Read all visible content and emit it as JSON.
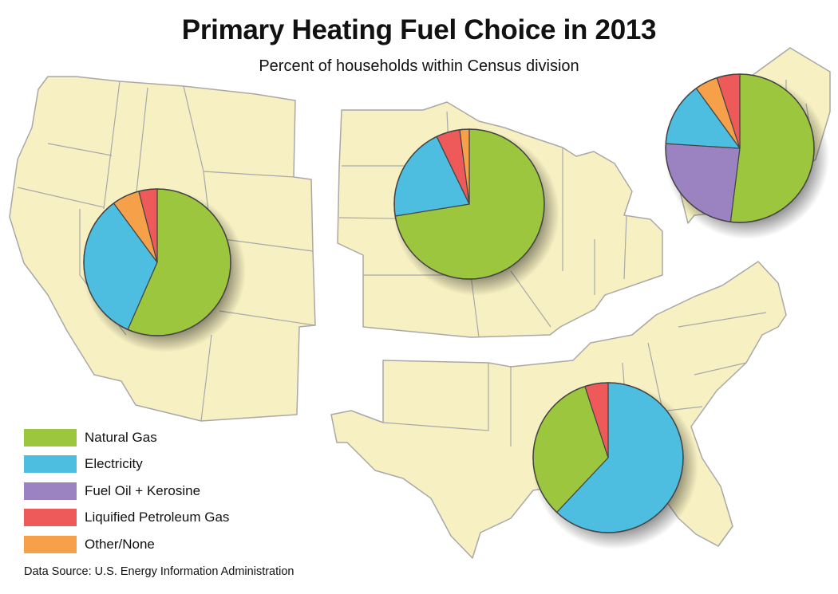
{
  "title": "Primary Heating Fuel Choice in 2013",
  "subtitle": "Percent of households within Census division",
  "colors": {
    "Natural Gas": "#9bc63e",
    "Electricity": "#4dbde0",
    "Fuel Oil + Kerosine": "#9b82c0",
    "Liquified Petroleum Gas": "#ee5a5a",
    "Other/None": "#f7a04a",
    "land": "#f7f0c2",
    "border": "#a8a8a8"
  },
  "legend": [
    {
      "label": "Natural Gas",
      "color": "#9bc63e"
    },
    {
      "label": "Electricity",
      "color": "#4dbde0"
    },
    {
      "label": "Fuel Oil + Kerosine",
      "color": "#9b82c0"
    },
    {
      "label": "Liquified Petroleum Gas",
      "color": "#ee5a5a"
    },
    {
      "label": "Other/None",
      "color": "#f7a04a"
    }
  ],
  "source": "Data Source: U.S. Energy Information Administration",
  "chart_data": {
    "type": "pie",
    "pies": [
      {
        "region": "West",
        "slices": [
          {
            "category": "Natural Gas",
            "value": 56
          },
          {
            "category": "Electricity",
            "value": 33
          },
          {
            "category": "Other/None",
            "value": 6
          },
          {
            "category": "Liquified Petroleum Gas",
            "value": 4
          }
        ]
      },
      {
        "region": "Midwest",
        "slices": [
          {
            "category": "Natural Gas",
            "value": 71
          },
          {
            "category": "Electricity",
            "value": 20
          },
          {
            "category": "Liquified Petroleum Gas",
            "value": 5
          },
          {
            "category": "Other/None",
            "value": 2
          }
        ]
      },
      {
        "region": "Northeast",
        "slices": [
          {
            "category": "Natural Gas",
            "value": 52
          },
          {
            "category": "Fuel Oil + Kerosine",
            "value": 24
          },
          {
            "category": "Electricity",
            "value": 14
          },
          {
            "category": "Other/None",
            "value": 5
          },
          {
            "category": "Liquified Petroleum Gas",
            "value": 5
          }
        ]
      },
      {
        "region": "South",
        "slices": [
          {
            "category": "Electricity",
            "value": 62
          },
          {
            "category": "Natural Gas",
            "value": 33
          },
          {
            "category": "Liquified Petroleum Gas",
            "value": 5
          }
        ]
      }
    ]
  }
}
